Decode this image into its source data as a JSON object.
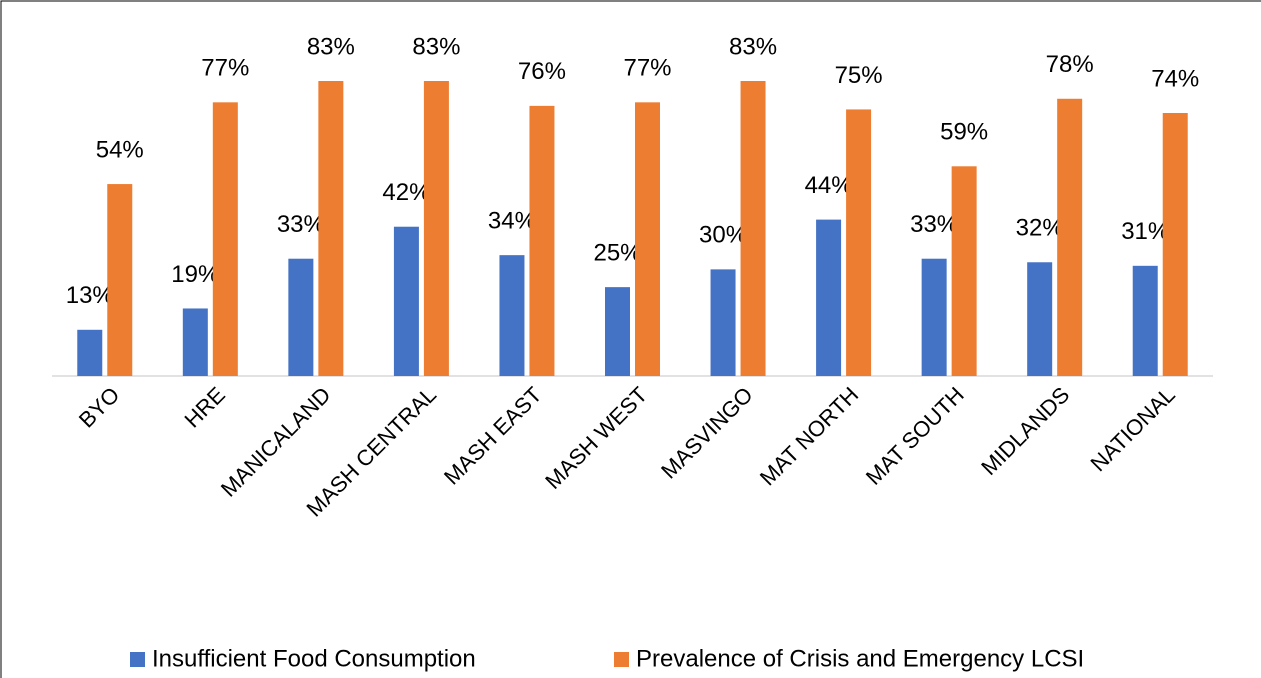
{
  "chart_data": {
    "type": "bar",
    "categories": [
      "BYO",
      "HRE",
      "MANICALAND",
      "MASH CENTRAL",
      "MASH EAST",
      "MASH WEST",
      "MASVINGO",
      "MAT NORTH",
      "MAT SOUTH",
      "MIDLANDS",
      "NATIONAL"
    ],
    "series": [
      {
        "name": "Insufficient Food Consumption",
        "color": "#4472c4",
        "values": [
          13,
          19,
          33,
          42,
          34,
          25,
          30,
          44,
          33,
          32,
          31
        ],
        "value_labels": [
          "13%",
          "19%",
          "33%",
          "42%",
          "34%",
          "25%",
          "30%",
          "44%",
          "33%",
          "32%",
          "31%"
        ]
      },
      {
        "name": "Prevalence of Crisis and Emergency LCSI",
        "color": "#ed7d31",
        "values": [
          54,
          77,
          83,
          83,
          76,
          77,
          83,
          75,
          59,
          78,
          74
        ],
        "value_labels": [
          "54%",
          "77%",
          "83%",
          "83%",
          "76%",
          "77%",
          "83%",
          "75%",
          "59%",
          "78%",
          "74%"
        ]
      }
    ],
    "legend": "bottom"
  }
}
